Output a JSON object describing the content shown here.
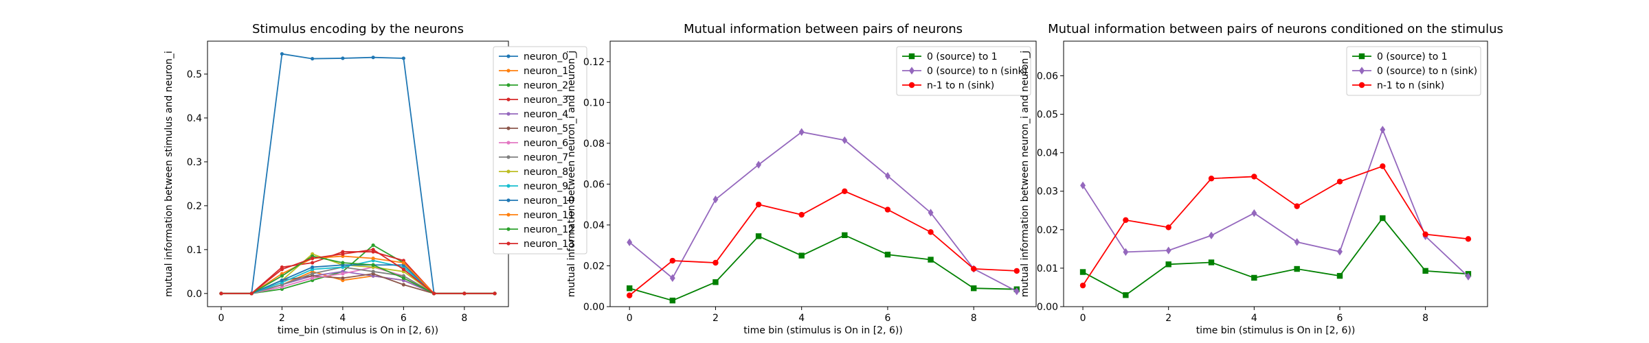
{
  "chart_data": [
    {
      "type": "line",
      "title": "Stimulus encoding by the neurons",
      "xlabel": "time_bin (stimulus is On in [2, 6))",
      "ylabel": "mutual information between stimulus and neuron_i",
      "xlim": [
        -0.45,
        9.45
      ],
      "ylim": [
        -0.03,
        0.575
      ],
      "xticks": [
        "0",
        "2",
        "4",
        "6",
        "8"
      ],
      "yticks": [
        "0.0",
        "0.1",
        "0.2",
        "0.3",
        "0.4",
        "0.5"
      ],
      "legend": "top-right",
      "x": [
        0,
        1,
        2,
        3,
        4,
        5,
        6,
        7,
        8,
        9
      ],
      "series": [
        {
          "name": "neuron_0",
          "color": "#1f77b4",
          "marker": "circle",
          "values": [
            0,
            0,
            0.546,
            0.535,
            0.536,
            0.538,
            0.536,
            0,
            0,
            0
          ]
        },
        {
          "name": "neuron_1",
          "color": "#ff7f0e",
          "marker": "circle",
          "values": [
            0,
            0,
            0.02,
            0.05,
            0.03,
            0.04,
            0.03,
            0,
            0,
            0
          ]
        },
        {
          "name": "neuron_2",
          "color": "#2ca02c",
          "marker": "circle",
          "values": [
            0,
            0,
            0.01,
            0.03,
            0.05,
            0.11,
            0.07,
            0,
            0,
            0
          ]
        },
        {
          "name": "neuron_3",
          "color": "#d62728",
          "marker": "circle",
          "values": [
            0,
            0,
            0.06,
            0.07,
            0.095,
            0.095,
            0.075,
            0,
            0,
            0
          ]
        },
        {
          "name": "neuron_4",
          "color": "#9467bd",
          "marker": "circle",
          "values": [
            0,
            0,
            0.02,
            0.04,
            0.05,
            0.04,
            0.03,
            0,
            0,
            0
          ]
        },
        {
          "name": "neuron_5",
          "color": "#8c564b",
          "marker": "circle",
          "values": [
            0,
            0,
            0.03,
            0.04,
            0.035,
            0.045,
            0.02,
            0,
            0,
            0
          ]
        },
        {
          "name": "neuron_6",
          "color": "#e377c2",
          "marker": "circle",
          "values": [
            0,
            0,
            0.015,
            0.035,
            0.045,
            0.06,
            0.04,
            0,
            0,
            0
          ]
        },
        {
          "name": "neuron_7",
          "color": "#7f7f7f",
          "marker": "circle",
          "values": [
            0,
            0,
            0.02,
            0.045,
            0.06,
            0.05,
            0.04,
            0,
            0,
            0
          ]
        },
        {
          "name": "neuron_8",
          "color": "#bcbd22",
          "marker": "circle",
          "values": [
            0,
            0,
            0.03,
            0.09,
            0.065,
            0.06,
            0.05,
            0,
            0,
            0
          ]
        },
        {
          "name": "neuron_9",
          "color": "#17becf",
          "marker": "circle",
          "values": [
            0,
            0,
            0.025,
            0.055,
            0.06,
            0.075,
            0.06,
            0,
            0,
            0
          ]
        },
        {
          "name": "neuron_10",
          "color": "#1f77b4",
          "marker": "circle",
          "values": [
            0,
            0,
            0.03,
            0.06,
            0.065,
            0.065,
            0.065,
            0,
            0,
            0
          ]
        },
        {
          "name": "neuron_11",
          "color": "#ff7f0e",
          "marker": "circle",
          "values": [
            0,
            0,
            0.045,
            0.08,
            0.085,
            0.08,
            0.07,
            0,
            0,
            0
          ]
        },
        {
          "name": "neuron_12",
          "color": "#2ca02c",
          "marker": "circle",
          "values": [
            0,
            0,
            0.04,
            0.085,
            0.07,
            0.065,
            0.035,
            0,
            0,
            0
          ]
        },
        {
          "name": "neuron_13",
          "color": "#d62728",
          "marker": "circle",
          "values": [
            0,
            0,
            0.055,
            0.08,
            0.09,
            0.1,
            0.055,
            0,
            0,
            0
          ]
        }
      ]
    },
    {
      "type": "line",
      "title": "Mutual information between pairs of neurons",
      "xlabel": "time bin (stimulus is On in [2, 6))",
      "ylabel": "mutual information between neuron_i and neuron_j",
      "xlim": [
        -0.45,
        9.45
      ],
      "ylim": [
        0,
        0.13
      ],
      "xticks": [
        "0",
        "2",
        "4",
        "6",
        "8"
      ],
      "yticks": [
        "0.00",
        "0.02",
        "0.04",
        "0.06",
        "0.08",
        "0.10",
        "0.12"
      ],
      "legend": "top-right",
      "x": [
        0,
        1,
        2,
        3,
        4,
        5,
        6,
        7,
        8,
        9
      ],
      "series": [
        {
          "name": "0 (source) to 1",
          "color": "#008000",
          "marker": "square",
          "values": [
            0.009,
            0.003,
            0.012,
            0.0345,
            0.025,
            0.035,
            0.0255,
            0.023,
            0.009,
            0.0085
          ]
        },
        {
          "name": "0 (source) to n (sink)",
          "color": "#9467bd",
          "marker": "diamond",
          "values": [
            0.0315,
            0.014,
            0.0525,
            0.0695,
            0.0855,
            0.0815,
            0.064,
            0.046,
            0.0185,
            0.0075
          ]
        },
        {
          "name": "n-1 to n (sink)",
          "color": "#ff0000",
          "marker": "circle",
          "values": [
            0.0055,
            0.0225,
            0.0215,
            0.05,
            0.045,
            0.0565,
            0.0475,
            0.0365,
            0.0185,
            0.0175
          ]
        }
      ]
    },
    {
      "type": "line",
      "title": "Mutual information between pairs of neurons conditioned on the stimulus",
      "xlabel": "time bin (stimulus is On in [2, 6))",
      "ylabel": "mutual information between neuron_i and neuron_j",
      "xlim": [
        -0.45,
        9.45
      ],
      "ylim": [
        0,
        0.069
      ],
      "xticks": [
        "0",
        "2",
        "4",
        "6",
        "8"
      ],
      "yticks": [
        "0.00",
        "0.01",
        "0.02",
        "0.03",
        "0.04",
        "0.05",
        "0.06"
      ],
      "legend": "top-right",
      "x": [
        0,
        1,
        2,
        3,
        4,
        5,
        6,
        7,
        8,
        9
      ],
      "series": [
        {
          "name": "0 (source) to 1",
          "color": "#008000",
          "marker": "square",
          "values": [
            0.009,
            0.003,
            0.011,
            0.0115,
            0.0075,
            0.0098,
            0.008,
            0.023,
            0.0093,
            0.0085
          ]
        },
        {
          "name": "0 (source) to n (sink)",
          "color": "#9467bd",
          "marker": "diamond",
          "values": [
            0.0315,
            0.0142,
            0.0146,
            0.0185,
            0.0243,
            0.0168,
            0.0143,
            0.046,
            0.0183,
            0.0078
          ]
        },
        {
          "name": "n-1 to n (sink)",
          "color": "#ff0000",
          "marker": "circle",
          "values": [
            0.0055,
            0.0225,
            0.0206,
            0.0333,
            0.0338,
            0.0261,
            0.0325,
            0.0365,
            0.0188,
            0.0176
          ]
        }
      ]
    }
  ]
}
